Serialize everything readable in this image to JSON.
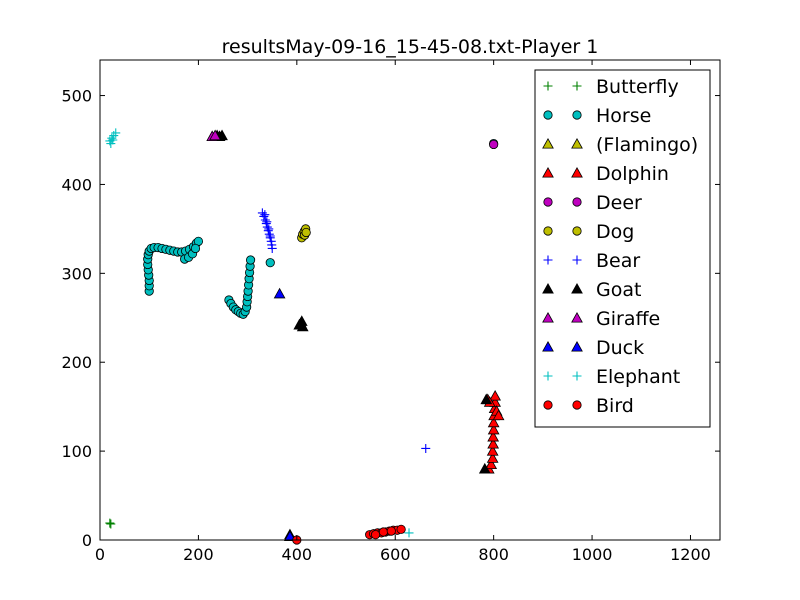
{
  "chart_data": {
    "type": "scatter",
    "title": "resultsMay-09-16_15-45-08.txt-Player 1",
    "xlabel": "",
    "ylabel": "",
    "xlim": [
      0,
      1260
    ],
    "ylim": [
      0,
      540
    ],
    "xticks": [
      0,
      200,
      400,
      600,
      800,
      1000,
      1200
    ],
    "yticks": [
      0,
      100,
      200,
      300,
      400,
      500
    ],
    "grid": false,
    "legend_position": "top-right",
    "series": [
      {
        "name": "Butterfly",
        "marker": "plus",
        "color": "#008000",
        "points": [
          [
            20,
            19
          ],
          [
            22,
            18
          ]
        ]
      },
      {
        "name": "Horse",
        "marker": "circle",
        "color": "#00bfbf",
        "points": [
          [
            100,
            280
          ],
          [
            100,
            286
          ],
          [
            100,
            292
          ],
          [
            99,
            298
          ],
          [
            98,
            304
          ],
          [
            97,
            310
          ],
          [
            97,
            316
          ],
          [
            98,
            321
          ],
          [
            100,
            325
          ],
          [
            104,
            328
          ],
          [
            110,
            329
          ],
          [
            118,
            329
          ],
          [
            126,
            328
          ],
          [
            134,
            327
          ],
          [
            142,
            326
          ],
          [
            150,
            325
          ],
          [
            158,
            324
          ],
          [
            166,
            324
          ],
          [
            174,
            325
          ],
          [
            182,
            327
          ],
          [
            190,
            330
          ],
          [
            196,
            334
          ],
          [
            200,
            336
          ],
          [
            172,
            316
          ],
          [
            180,
            318
          ],
          [
            188,
            322
          ],
          [
            194,
            328
          ],
          [
            262,
            270
          ],
          [
            266,
            266
          ],
          [
            271,
            262
          ],
          [
            276,
            259
          ],
          [
            281,
            257
          ],
          [
            286,
            255
          ],
          [
            291,
            254
          ],
          [
            295,
            257
          ],
          [
            298,
            262
          ],
          [
            299,
            268
          ],
          [
            300,
            274
          ],
          [
            301,
            280
          ],
          [
            302,
            287
          ],
          [
            303,
            294
          ],
          [
            304,
            301
          ],
          [
            305,
            308
          ],
          [
            306,
            315
          ],
          [
            346,
            312
          ],
          [
            800,
            446
          ]
        ]
      },
      {
        "name": "(Flamingo)",
        "marker": "triangle",
        "color": "#bfbf00",
        "points": []
      },
      {
        "name": "Dolphin",
        "marker": "triangle",
        "color": "#ff0000",
        "points": [
          [
            790,
            80
          ],
          [
            795,
            85
          ],
          [
            798,
            92
          ],
          [
            798,
            100
          ],
          [
            799,
            108
          ],
          [
            799,
            116
          ],
          [
            800,
            124
          ],
          [
            800,
            132
          ],
          [
            801,
            140
          ],
          [
            802,
            148
          ],
          [
            803,
            155
          ],
          [
            803,
            162
          ],
          [
            806,
            145
          ],
          [
            810,
            140
          ],
          [
            788,
            158
          ],
          [
            792,
            155
          ]
        ]
      },
      {
        "name": "Deer",
        "marker": "circle",
        "color": "#bf00bf",
        "points": [
          [
            800,
            445
          ]
        ]
      },
      {
        "name": "Dog",
        "marker": "circle",
        "color": "#bfbf00",
        "points": [
          [
            410,
            340
          ],
          [
            412,
            344
          ],
          [
            415,
            347
          ],
          [
            418,
            350
          ],
          [
            416,
            343
          ],
          [
            419,
            346
          ]
        ]
      },
      {
        "name": "Bear",
        "marker": "plus",
        "color": "#0000ff",
        "points": [
          [
            330,
            368
          ],
          [
            333,
            364
          ],
          [
            336,
            360
          ],
          [
            338,
            356
          ],
          [
            340,
            352
          ],
          [
            342,
            348
          ],
          [
            344,
            344
          ],
          [
            346,
            340
          ],
          [
            348,
            336
          ],
          [
            349,
            332
          ],
          [
            350,
            328
          ],
          [
            335,
            366
          ],
          [
            339,
            358
          ],
          [
            343,
            350
          ],
          [
            346,
            342
          ],
          [
            662,
            103
          ]
        ]
      },
      {
        "name": "Goat",
        "marker": "triangle",
        "color": "#000000",
        "points": [
          [
            405,
            242
          ],
          [
            410,
            246
          ],
          [
            412,
            240
          ],
          [
            408,
            244
          ],
          [
            238,
            455
          ],
          [
            243,
            454
          ],
          [
            248,
            455
          ],
          [
            386,
            6
          ],
          [
            785,
            158
          ],
          [
            782,
            80
          ]
        ]
      },
      {
        "name": "Giraffe",
        "marker": "triangle",
        "color": "#bf00bf",
        "points": [
          [
            228,
            454
          ],
          [
            234,
            455
          ]
        ]
      },
      {
        "name": "Duck",
        "marker": "triangle",
        "color": "#0000ff",
        "points": [
          [
            365,
            277
          ],
          [
            386,
            4
          ]
        ]
      },
      {
        "name": "Elephant",
        "marker": "plus",
        "color": "#00bfbf",
        "points": [
          [
            20,
            449
          ],
          [
            24,
            452
          ],
          [
            28,
            455
          ],
          [
            32,
            458
          ],
          [
            22,
            446
          ],
          [
            26,
            450
          ],
          [
            628,
            8
          ]
        ]
      },
      {
        "name": "Bird",
        "marker": "circle",
        "color": "#ff0000",
        "points": [
          [
            400,
            0
          ],
          [
            548,
            6
          ],
          [
            556,
            7
          ],
          [
            564,
            8
          ],
          [
            572,
            8
          ],
          [
            580,
            9
          ],
          [
            588,
            10
          ],
          [
            596,
            11
          ],
          [
            604,
            11
          ],
          [
            612,
            12
          ],
          [
            560,
            6
          ],
          [
            576,
            9
          ],
          [
            592,
            10
          ]
        ]
      }
    ]
  }
}
